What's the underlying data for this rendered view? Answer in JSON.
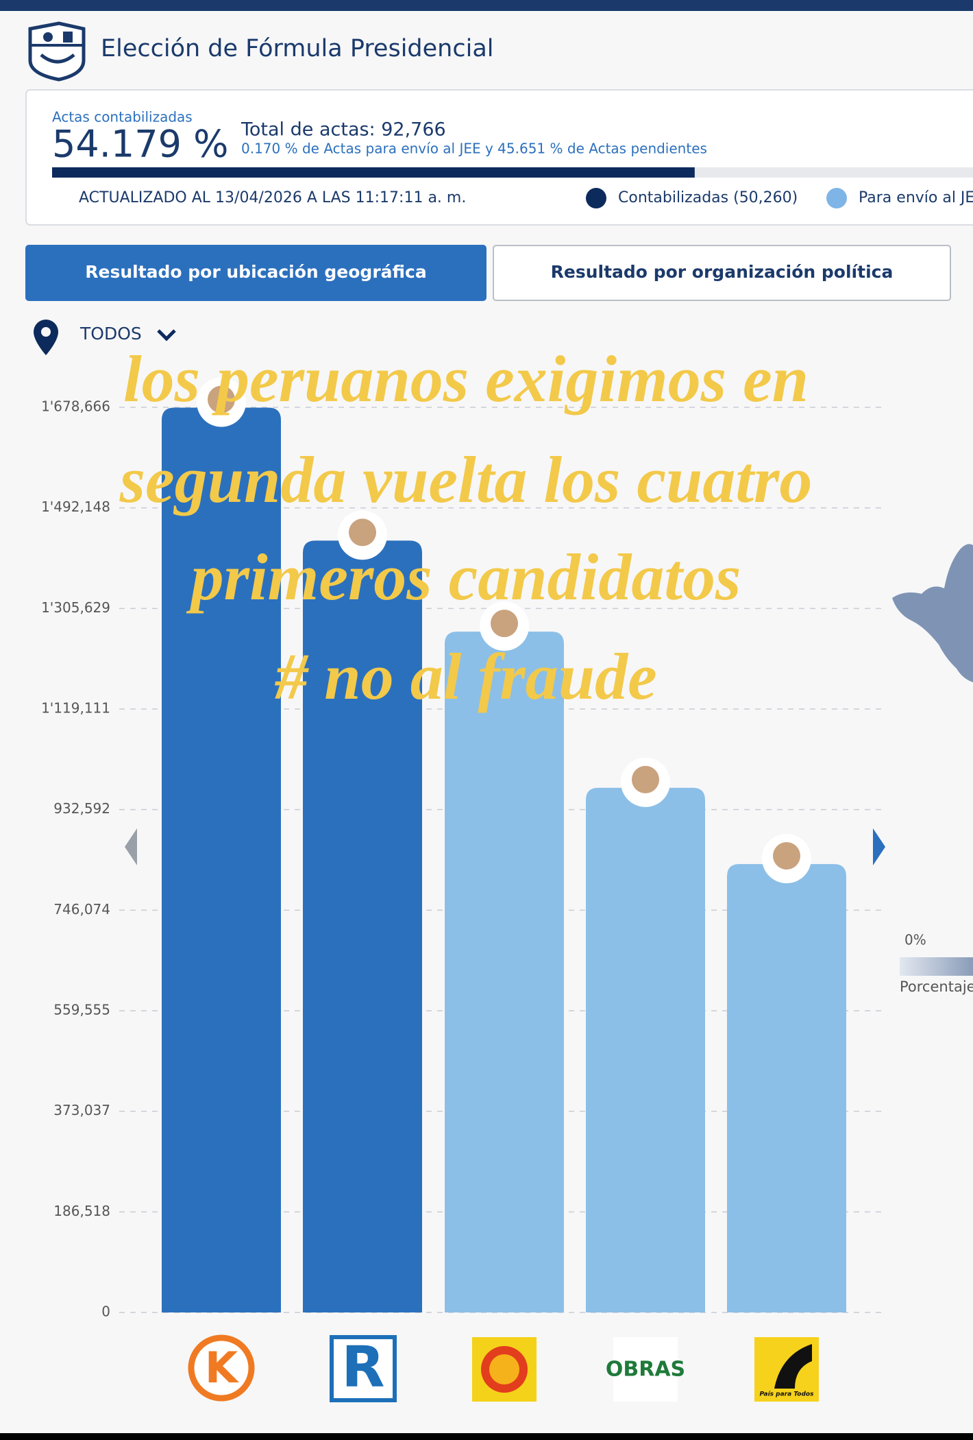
{
  "header": {
    "title": "Elección de Fórmula Presidencial"
  },
  "summary": {
    "label": "Actas contabilizadas",
    "percent": {
      "value": 54.179,
      "label": "54.179 %"
    },
    "total": "Total de actas: 92,766",
    "note": "0.170 % de Actas para envío al JEE y 45.651 % de Actas pendientes",
    "updated": "ACTUALIZADO AL 13/04/2026 A LAS 11:17:11 a. m.",
    "legend": [
      {
        "name": "Contabilizadas (50,260)",
        "color": "#0d2a5c"
      },
      {
        "name": "Para envío al JE",
        "color": "#7fb5e6"
      }
    ]
  },
  "tabs": [
    {
      "label": "Resultado por ubicación geográfica",
      "active": true
    },
    {
      "label": "Resultado por organización política",
      "active": false
    }
  ],
  "filter": "TODOS",
  "chart_data": {
    "type": "bar",
    "categories": [
      null,
      null,
      null,
      null,
      null
    ],
    "values": [
      1678000,
      1431500,
      1262700,
      973000,
      831600
    ],
    "colors": [
      "#2b70bd",
      "#2b70bd",
      "#8bbfe7",
      "#8bbfe7",
      "#8bbfe7"
    ],
    "ylim": [
      0,
      1678666
    ],
    "yticks": [
      0,
      {
        "value": 186518,
        "label": "186,518"
      },
      {
        "value": 373037,
        "label": "373,037"
      },
      {
        "value": 559555,
        "label": "559,555"
      },
      {
        "value": 746074,
        "label": "746,074"
      },
      {
        "value": 932592,
        "label": "932,592"
      },
      {
        "value": 1119111,
        "label": "1'119,111"
      },
      {
        "value": 1305629,
        "label": "1'305,629"
      },
      {
        "value": 1492148,
        "label": "1'492,148"
      },
      {
        "value": 1678666,
        "label": "1'678,666"
      }
    ],
    "grid": true
  },
  "map_legend": {
    "min": "0%",
    "label": "Porcentaje"
  },
  "overlay": [
    "los peruanos exigimos en",
    "segunda vuelta los cuatro",
    "primeros candidatos",
    "# no al fraude"
  ],
  "logos": {
    "k": "K",
    "r": "R",
    "obras": "OBRAS",
    "ppt": "País para Todos"
  }
}
